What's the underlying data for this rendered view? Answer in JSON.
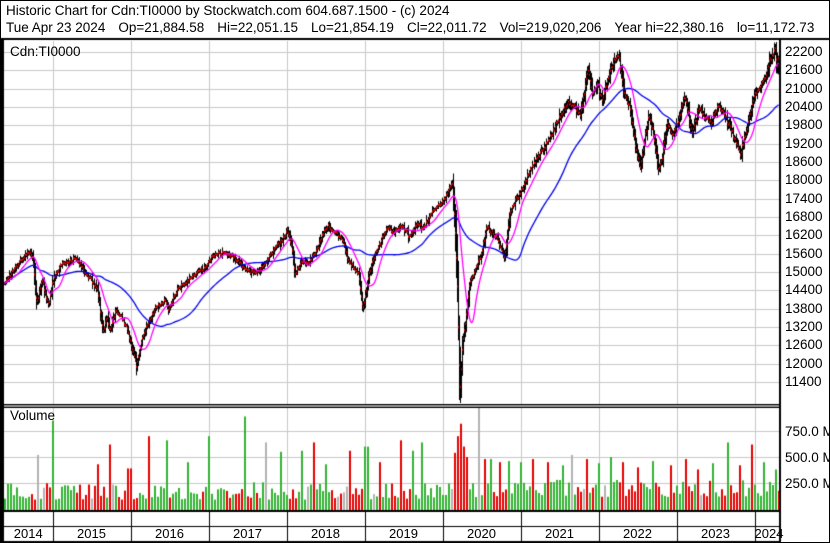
{
  "header": {
    "title": "Historic Chart for Cdn:TI0000 by Stockwatch.com 604.687.1500 - (c) 2024",
    "quote": {
      "date": "Tue Apr 23 2024",
      "open": "Op=21,884.58",
      "high": "Hi=22,051.15",
      "low": "Lo=21,854.19",
      "close": "Cl=22,011.72",
      "volume": "Vol=219,020,206",
      "year_high": "Year hi=22,380.16",
      "year_low": "lo=11,172.73"
    }
  },
  "chart_data": {
    "type": "bar",
    "subtype": "daily-ohlc-with-volume",
    "title": "Historic Chart for Cdn:TI0000",
    "symbol_label": "Cdn:TI0000",
    "volume_label": "Volume",
    "x_years": [
      "2014",
      "2015",
      "2016",
      "2017",
      "2018",
      "2019",
      "2020",
      "2021",
      "2022",
      "2023",
      "2024"
    ],
    "price_axis": {
      "min": 11400,
      "max": 22200,
      "step": 600,
      "side": "right",
      "ticks": [
        "22200",
        "21600",
        "21000",
        "20400",
        "19800",
        "19200",
        "18600",
        "18000",
        "17400",
        "16800",
        "16200",
        "15600",
        "15000",
        "14400",
        "13800",
        "13200",
        "12600",
        "12000",
        "11400"
      ]
    },
    "volume_axis": {
      "side": "right",
      "ticks": [
        {
          "label": "750.0 M",
          "value_m": 750
        },
        {
          "label": "500.0 M",
          "value_m": 500
        },
        {
          "label": "250.0 M",
          "value_m": 250
        }
      ]
    },
    "last_bar": {
      "open": 21884.58,
      "high": 22051.15,
      "low": 21854.19,
      "close": 22011.72
    },
    "price_anchors_t_close": [
      [
        2014.38,
        14600
      ],
      [
        2014.5,
        15050
      ],
      [
        2014.62,
        15450
      ],
      [
        2014.7,
        15650
      ],
      [
        2014.75,
        15500
      ],
      [
        2014.8,
        13950
      ],
      [
        2014.87,
        14750
      ],
      [
        2014.93,
        14100
      ],
      [
        2014.96,
        13950
      ],
      [
        2015.0,
        14630
      ],
      [
        2015.1,
        15200
      ],
      [
        2015.3,
        15450
      ],
      [
        2015.42,
        15000
      ],
      [
        2015.5,
        14750
      ],
      [
        2015.58,
        14400
      ],
      [
        2015.65,
        13050
      ],
      [
        2015.7,
        13500
      ],
      [
        2015.74,
        13100
      ],
      [
        2015.82,
        13750
      ],
      [
        2015.9,
        13450
      ],
      [
        2015.96,
        13150
      ],
      [
        2016.05,
        12250
      ],
      [
        2016.08,
        11900
      ],
      [
        2016.15,
        12850
      ],
      [
        2016.25,
        13450
      ],
      [
        2016.35,
        13900
      ],
      [
        2016.45,
        14050
      ],
      [
        2016.49,
        13750
      ],
      [
        2016.6,
        14400
      ],
      [
        2016.75,
        14750
      ],
      [
        2016.85,
        14950
      ],
      [
        2016.95,
        15150
      ],
      [
        2017.05,
        15500
      ],
      [
        2017.15,
        15620
      ],
      [
        2017.3,
        15550
      ],
      [
        2017.42,
        15250
      ],
      [
        2017.5,
        15050
      ],
      [
        2017.62,
        14960
      ],
      [
        2017.75,
        15350
      ],
      [
        2017.85,
        15750
      ],
      [
        2017.95,
        16050
      ],
      [
        2018.02,
        16380
      ],
      [
        2018.08,
        15650
      ],
      [
        2018.11,
        14900
      ],
      [
        2018.2,
        15350
      ],
      [
        2018.28,
        15250
      ],
      [
        2018.38,
        15650
      ],
      [
        2018.48,
        16300
      ],
      [
        2018.53,
        16500
      ],
      [
        2018.65,
        16250
      ],
      [
        2018.73,
        16050
      ],
      [
        2018.8,
        15350
      ],
      [
        2018.85,
        15200
      ],
      [
        2018.93,
        14900
      ],
      [
        2018.97,
        14050
      ],
      [
        2018.99,
        13820
      ],
      [
        2019.06,
        14950
      ],
      [
        2019.14,
        15550
      ],
      [
        2019.22,
        16050
      ],
      [
        2019.3,
        16500
      ],
      [
        2019.38,
        16300
      ],
      [
        2019.48,
        16500
      ],
      [
        2019.58,
        16150
      ],
      [
        2019.68,
        16600
      ],
      [
        2019.76,
        16400
      ],
      [
        2019.85,
        16900
      ],
      [
        2019.95,
        17150
      ],
      [
        2020.03,
        17350
      ],
      [
        2020.1,
        17800
      ],
      [
        2020.13,
        17940
      ],
      [
        2020.16,
        16700
      ],
      [
        2020.19,
        14800
      ],
      [
        2020.22,
        11700
      ],
      [
        2020.23,
        11200
      ],
      [
        2020.26,
        12600
      ],
      [
        2020.3,
        13450
      ],
      [
        2020.35,
        14650
      ],
      [
        2020.42,
        15050
      ],
      [
        2020.5,
        15550
      ],
      [
        2020.57,
        16500
      ],
      [
        2020.63,
        16300
      ],
      [
        2020.7,
        16150
      ],
      [
        2020.76,
        15700
      ],
      [
        2020.8,
        15500
      ],
      [
        2020.87,
        16900
      ],
      [
        2020.95,
        17400
      ],
      [
        2021.03,
        17700
      ],
      [
        2021.12,
        18300
      ],
      [
        2021.22,
        18750
      ],
      [
        2021.32,
        19100
      ],
      [
        2021.42,
        19600
      ],
      [
        2021.52,
        20150
      ],
      [
        2021.62,
        20550
      ],
      [
        2021.7,
        20400
      ],
      [
        2021.77,
        20150
      ],
      [
        2021.85,
        21300
      ],
      [
        2021.87,
        21650
      ],
      [
        2021.93,
        20750
      ],
      [
        2021.99,
        21150
      ],
      [
        2022.05,
        20650
      ],
      [
        2022.12,
        21300
      ],
      [
        2022.2,
        21900
      ],
      [
        2022.26,
        22100
      ],
      [
        2022.33,
        20900
      ],
      [
        2022.4,
        20450
      ],
      [
        2022.48,
        19100
      ],
      [
        2022.54,
        18400
      ],
      [
        2022.6,
        19450
      ],
      [
        2022.65,
        20150
      ],
      [
        2022.72,
        19350
      ],
      [
        2022.77,
        18350
      ],
      [
        2022.82,
        18700
      ],
      [
        2022.88,
        19850
      ],
      [
        2022.95,
        19500
      ],
      [
        2023.02,
        19900
      ],
      [
        2023.09,
        20600
      ],
      [
        2023.12,
        20750
      ],
      [
        2023.2,
        19550
      ],
      [
        2023.3,
        20350
      ],
      [
        2023.38,
        20050
      ],
      [
        2023.45,
        19850
      ],
      [
        2023.53,
        20450
      ],
      [
        2023.62,
        20150
      ],
      [
        2023.7,
        19700
      ],
      [
        2023.78,
        19150
      ],
      [
        2023.82,
        18850
      ],
      [
        2023.9,
        19600
      ],
      [
        2023.96,
        20350
      ],
      [
        2024.02,
        20900
      ],
      [
        2024.08,
        21050
      ],
      [
        2024.14,
        21350
      ],
      [
        2024.2,
        21900
      ],
      [
        2024.25,
        22150
      ],
      [
        2024.27,
        22330
      ],
      [
        2024.29,
        21700
      ],
      [
        2024.312,
        22011.72
      ]
    ],
    "moving_averages": [
      {
        "name": "short-ma",
        "approx_days": 50,
        "color": "#ff00ff"
      },
      {
        "name": "long-ma",
        "approx_days": 200,
        "color": "#0000ee"
      }
    ],
    "volume_spikes_m": [
      [
        2014.8,
        520,
        "neutral"
      ],
      [
        2015.0,
        850,
        "up"
      ],
      [
        2015.56,
        430,
        "down"
      ],
      [
        2015.72,
        620,
        "down"
      ],
      [
        2015.98,
        390,
        "down"
      ],
      [
        2016.24,
        700,
        "down"
      ],
      [
        2016.47,
        660,
        "up"
      ],
      [
        2016.72,
        450,
        "up"
      ],
      [
        2016.99,
        700,
        "up"
      ],
      [
        2017.46,
        890,
        "up"
      ],
      [
        2017.73,
        640,
        "neutral"
      ],
      [
        2017.94,
        550,
        "up"
      ],
      [
        2018.21,
        560,
        "up"
      ],
      [
        2018.35,
        640,
        "down"
      ],
      [
        2018.51,
        430,
        "up"
      ],
      [
        2018.79,
        560,
        "down"
      ],
      [
        2019.02,
        600,
        "up"
      ],
      [
        2019.21,
        450,
        "down"
      ],
      [
        2019.47,
        660,
        "down"
      ],
      [
        2019.6,
        560,
        "up"
      ],
      [
        2019.74,
        640,
        "up"
      ],
      [
        2020.16,
        540,
        "down"
      ],
      [
        2020.19,
        700,
        "down"
      ],
      [
        2020.22,
        820,
        "down"
      ],
      [
        2020.24,
        760,
        "down"
      ],
      [
        2020.27,
        600,
        "down"
      ],
      [
        2020.3,
        500,
        "down"
      ],
      [
        2020.45,
        980,
        "neutral"
      ],
      [
        2020.55,
        480,
        "down"
      ],
      [
        2020.63,
        480,
        "up"
      ],
      [
        2020.72,
        450,
        "down"
      ],
      [
        2020.86,
        460,
        "up"
      ],
      [
        2021.01,
        450,
        "up"
      ],
      [
        2021.14,
        480,
        "down"
      ],
      [
        2021.33,
        450,
        "down"
      ],
      [
        2021.53,
        420,
        "up"
      ],
      [
        2021.65,
        520,
        "neutral"
      ],
      [
        2021.85,
        480,
        "down"
      ],
      [
        2022.01,
        440,
        "up"
      ],
      [
        2022.17,
        500,
        "up"
      ],
      [
        2022.32,
        450,
        "down"
      ],
      [
        2022.49,
        400,
        "down"
      ],
      [
        2022.71,
        460,
        "up"
      ],
      [
        2022.91,
        420,
        "down"
      ],
      [
        2023.12,
        480,
        "down"
      ],
      [
        2023.26,
        380,
        "down"
      ],
      [
        2023.45,
        440,
        "up"
      ],
      [
        2023.65,
        640,
        "up"
      ],
      [
        2023.8,
        420,
        "down"
      ],
      [
        2023.96,
        620,
        "down"
      ],
      [
        2024.12,
        450,
        "up"
      ],
      [
        2024.27,
        380,
        "up"
      ]
    ],
    "colors": {
      "bar": "#000000",
      "close_tick": "#e80000",
      "ma_short": "#ff00ff",
      "ma_long": "#0000ee",
      "volume_up": "#33b233",
      "volume_down": "#e60000",
      "volume_neutral": "#b3b3b3",
      "grid": "#c8c8c8",
      "frame": "#000000",
      "background": "#ffffff"
    },
    "grid": true,
    "legend": "none"
  }
}
